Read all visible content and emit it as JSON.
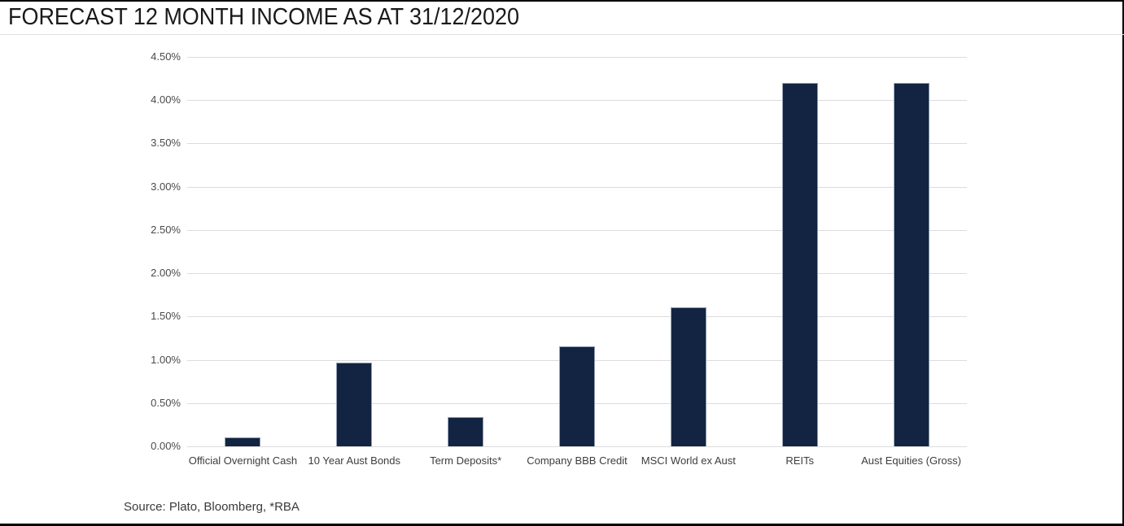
{
  "header": {
    "title": "FORECAST 12 MONTH INCOME AS AT 31/12/2020"
  },
  "chart_data": {
    "type": "bar",
    "title": "FORECAST 12 MONTH INCOME AS AT 31/12/2020",
    "categories": [
      "Official Overnight Cash",
      "10 Year Aust Bonds",
      "Term Deposits*",
      "Company BBB Credit",
      "MSCI World ex Aust",
      "REITs",
      "Aust Equities (Gross)"
    ],
    "values": [
      0.1,
      0.97,
      0.34,
      1.16,
      1.61,
      4.2,
      4.2
    ],
    "unit": "%",
    "xlabel": "",
    "ylabel": "",
    "ylim": [
      0,
      4.5
    ],
    "ytick_step": 0.5,
    "ytick_labels": [
      "0.00%",
      "0.50%",
      "1.00%",
      "1.50%",
      "2.00%",
      "2.50%",
      "3.00%",
      "3.50%",
      "4.00%",
      "4.50%"
    ],
    "grid": true,
    "legend_position": "none",
    "colors": {
      "bar_fill": "#122441",
      "bar_border": "#93a1b4",
      "gridline": "#dcdcdc",
      "tick_text": "#4a4a4a",
      "category_text": "#3d3d3d",
      "title_text": "#1a1a1a",
      "frame": "#000000"
    }
  },
  "footer": {
    "source": "Source: Plato, Bloomberg, *RBA"
  }
}
